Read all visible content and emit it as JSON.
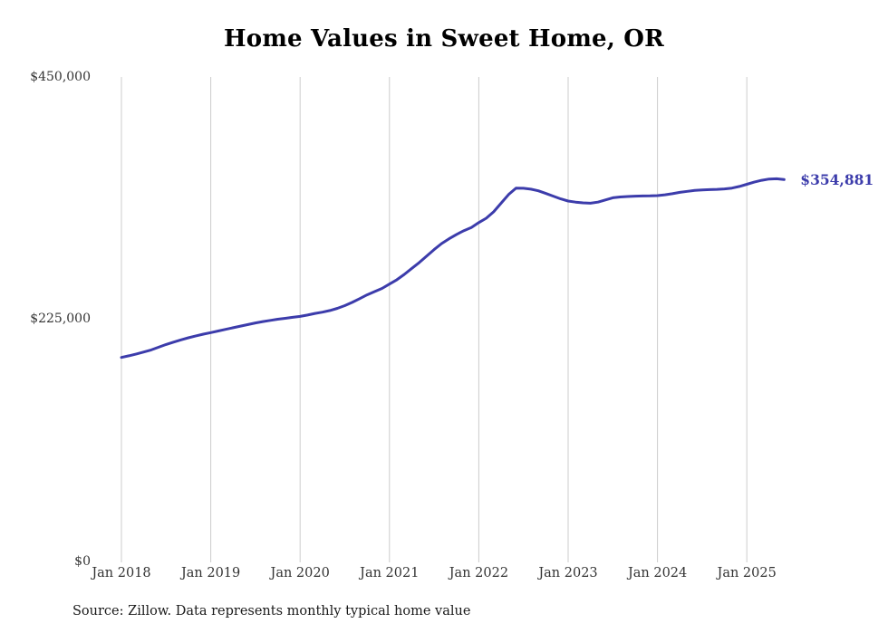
{
  "chart": {
    "title": "Home Values in Sweet Home, OR",
    "end_label": "$354,881",
    "source": "Source: Zillow. Data represents monthly typical home value",
    "y_ticks": [
      "$450,000",
      "$225,000",
      "$0"
    ],
    "x_ticks": [
      "Jan 2018",
      "Jan 2019",
      "Jan 2020",
      "Jan 2021",
      "Jan 2022",
      "Jan 2023",
      "Jan 2024",
      "Jan 2025"
    ],
    "colors": {
      "line": "#3c3cab",
      "grid": "#cccccc",
      "text": "#333333",
      "title": "#000000"
    }
  },
  "chart_data": {
    "type": "line",
    "title": "Home Values in Sweet Home, OR",
    "xlabel": "",
    "ylabel": "",
    "ylim": [
      0,
      450000
    ],
    "grid": "vertical-only",
    "legend": "none",
    "latest": {
      "date": "2025-06",
      "value": 354881,
      "label": "$354,881"
    },
    "x": [
      "2018-01",
      "2018-02",
      "2018-03",
      "2018-04",
      "2018-05",
      "2018-06",
      "2018-07",
      "2018-08",
      "2018-09",
      "2018-10",
      "2018-11",
      "2018-12",
      "2019-01",
      "2019-02",
      "2019-03",
      "2019-04",
      "2019-05",
      "2019-06",
      "2019-07",
      "2019-08",
      "2019-09",
      "2019-10",
      "2019-11",
      "2019-12",
      "2020-01",
      "2020-02",
      "2020-03",
      "2020-04",
      "2020-05",
      "2020-06",
      "2020-07",
      "2020-08",
      "2020-09",
      "2020-10",
      "2020-11",
      "2020-12",
      "2021-01",
      "2021-02",
      "2021-03",
      "2021-04",
      "2021-05",
      "2021-06",
      "2021-07",
      "2021-08",
      "2021-09",
      "2021-10",
      "2021-11",
      "2021-12",
      "2022-01",
      "2022-02",
      "2022-03",
      "2022-04",
      "2022-05",
      "2022-06",
      "2022-07",
      "2022-08",
      "2022-09",
      "2022-10",
      "2022-11",
      "2022-12",
      "2023-01",
      "2023-02",
      "2023-03",
      "2023-04",
      "2023-05",
      "2023-06",
      "2023-07",
      "2023-08",
      "2023-09",
      "2023-10",
      "2023-11",
      "2023-12",
      "2024-01",
      "2024-02",
      "2024-03",
      "2024-04",
      "2024-05",
      "2024-06",
      "2024-07",
      "2024-08",
      "2024-09",
      "2024-10",
      "2024-11",
      "2024-12",
      "2025-01",
      "2025-02",
      "2025-03",
      "2025-04",
      "2025-05",
      "2025-06"
    ],
    "values": [
      190000,
      191500,
      193200,
      195000,
      197000,
      199500,
      202000,
      204200,
      206300,
      208200,
      210000,
      211600,
      213000,
      214500,
      216000,
      217500,
      219000,
      220500,
      222000,
      223200,
      224300,
      225400,
      226300,
      227200,
      228000,
      229300,
      230800,
      232000,
      233500,
      235500,
      238000,
      241000,
      244500,
      248000,
      251000,
      254000,
      258000,
      262000,
      267000,
      272500,
      278000,
      284000,
      290000,
      295500,
      300000,
      304000,
      307500,
      310500,
      315000,
      319000,
      325000,
      333000,
      341000,
      347000,
      346800,
      346000,
      344500,
      342000,
      339500,
      337000,
      335000,
      334000,
      333300,
      333000,
      334000,
      336000,
      338000,
      338800,
      339200,
      339500,
      339700,
      339800,
      340000,
      340800,
      341800,
      343000,
      344000,
      344800,
      345300,
      345600,
      345800,
      346200,
      347000,
      348500,
      350500,
      352500,
      354200,
      355400,
      355600,
      354881
    ]
  }
}
